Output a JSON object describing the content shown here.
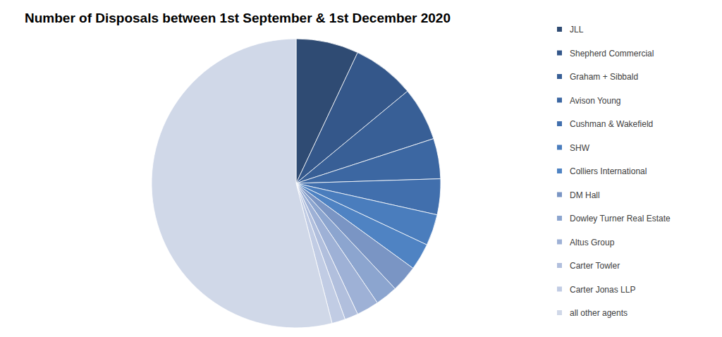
{
  "chart_data": {
    "type": "pie",
    "title": "Number of Disposals between 1st September & 1st December 2020",
    "categories": [
      "JLL",
      "Shepherd Commercial",
      "Graham + Sibbald",
      "Avison Young",
      "Cushman & Wakefield",
      "SHW",
      "Colliers International",
      "DM Hall",
      "Dowley Turner Real Estate",
      "Altus Group",
      "Carter Towler",
      "Carter Jonas LLP",
      "all other agents"
    ],
    "values": [
      14,
      14,
      12,
      9,
      8,
      7,
      6,
      6,
      5,
      5,
      3,
      3,
      108
    ],
    "colors": [
      "#2f4b73",
      "#34578a",
      "#385f96",
      "#3c67a2",
      "#416fad",
      "#4a7dbd",
      "#4f83c3",
      "#7a95c4",
      "#8ca5cf",
      "#9eb1d6",
      "#b1bfdd",
      "#c1cce4",
      "#d0d8e8"
    ],
    "legend": "right"
  }
}
